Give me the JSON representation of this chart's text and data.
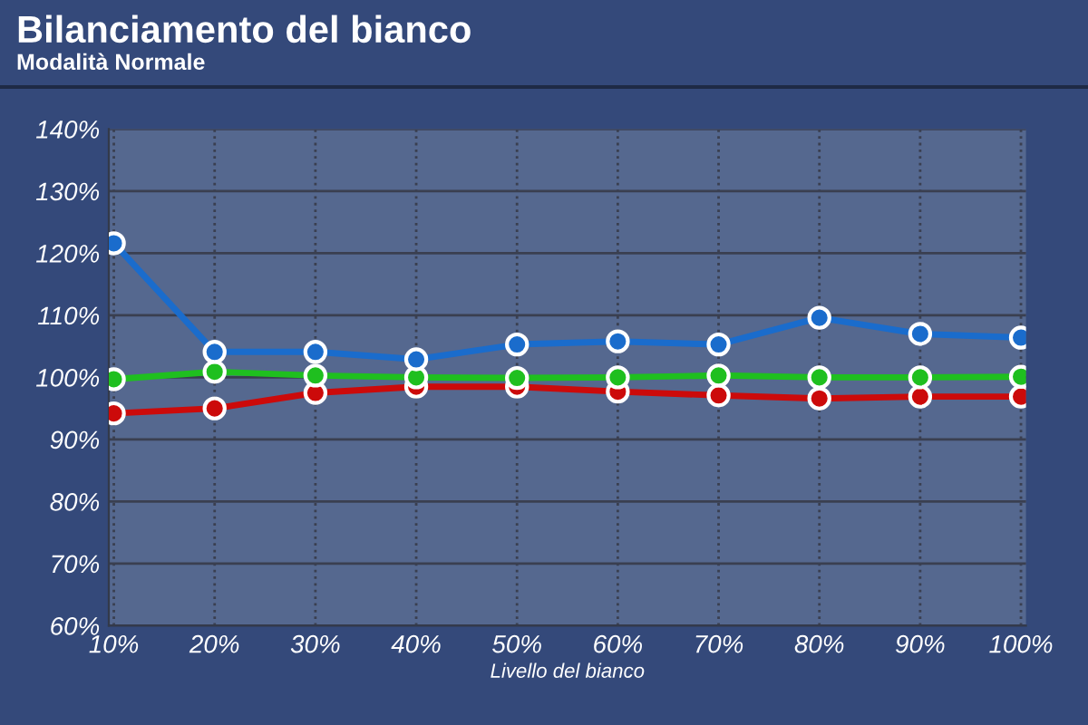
{
  "chart_data": {
    "type": "line",
    "title": "Bilanciamento del bianco",
    "subtitle": "Modalità Normale",
    "xlabel": "Livello del bianco",
    "categories": [
      "10%",
      "20%",
      "30%",
      "40%",
      "50%",
      "60%",
      "70%",
      "80%",
      "90%",
      "100%"
    ],
    "series": [
      {
        "color": "#1a6ccc",
        "values": [
          121.6,
          104.1,
          104.1,
          102.9,
          105.3,
          105.8,
          105.3,
          109.6,
          107.0,
          106.4
        ]
      },
      {
        "color": "#1fbf1f",
        "values": [
          99.7,
          100.9,
          100.3,
          100.0,
          99.9,
          100.0,
          100.3,
          100.0,
          100.0,
          100.1
        ]
      },
      {
        "color": "#cc0a0a",
        "values": [
          94.2,
          95.0,
          97.5,
          98.5,
          98.5,
          97.7,
          97.1,
          96.6,
          96.9,
          96.9
        ]
      }
    ],
    "ylim": [
      60,
      140
    ],
    "yticks": [
      {
        "value": 60,
        "label": "60%"
      },
      {
        "value": 70,
        "label": "70%"
      },
      {
        "value": 80,
        "label": "80%"
      },
      {
        "value": 90,
        "label": "90%"
      },
      {
        "value": 100,
        "label": "100%"
      },
      {
        "value": 110,
        "label": "110%"
      },
      {
        "value": 120,
        "label": "120%"
      },
      {
        "value": 130,
        "label": "130%"
      },
      {
        "value": 140,
        "label": "140%"
      }
    ],
    "grid": true,
    "marker": "circle",
    "line_style": "solid",
    "legend": false
  }
}
